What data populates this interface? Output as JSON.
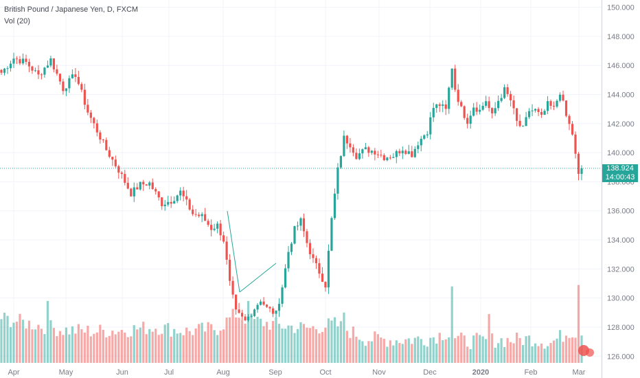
{
  "legend": {
    "title": "British Pound / Japanese Yen, D, FXCM",
    "indicator": "Vol (20)"
  },
  "current": {
    "price": "138.924",
    "timer": "14:00:43",
    "up_color": "#26a69a",
    "down_color": "#ef5350"
  },
  "chart_data": {
    "type": "candlestick",
    "x_labels": [
      "Apr",
      "May",
      "Jun",
      "Jul",
      "Aug",
      "Sep",
      "Oct",
      "Nov",
      "Dec",
      "2020",
      "Feb",
      "Mar"
    ],
    "y_ticks": [
      "126.000",
      "128.000",
      "130.000",
      "132.000",
      "134.000",
      "136.000",
      "138.000",
      "140.000",
      "142.000",
      "144.000",
      "146.000",
      "148.000",
      "150.000"
    ],
    "ylim": [
      124.5,
      150.5
    ],
    "last_price": 138.924,
    "close_path": [
      [
        0,
        145.5
      ],
      [
        4,
        146.5
      ],
      [
        8,
        146.2
      ],
      [
        12,
        145.3
      ],
      [
        16,
        146.4
      ],
      [
        20,
        144.4
      ],
      [
        24,
        145.4
      ],
      [
        28,
        142.8
      ],
      [
        34,
        140.2
      ],
      [
        38,
        138.8
      ],
      [
        42,
        137.2
      ],
      [
        45,
        137.8
      ],
      [
        48,
        137.9
      ],
      [
        52,
        136.5
      ],
      [
        55,
        136.7
      ],
      [
        58,
        137.3
      ],
      [
        62,
        135.8
      ],
      [
        65,
        135.6
      ],
      [
        68,
        134.8
      ],
      [
        70,
        135.0
      ],
      [
        72,
        134.0
      ],
      [
        74,
        131.0
      ],
      [
        76,
        129.0
      ],
      [
        79,
        128.4
      ],
      [
        82,
        129.3
      ],
      [
        84,
        129.9
      ],
      [
        86,
        129.3
      ],
      [
        89,
        128.9
      ],
      [
        91,
        130.8
      ],
      [
        93,
        133.2
      ],
      [
        95,
        134.7
      ],
      [
        97,
        135.3
      ],
      [
        99,
        133.8
      ],
      [
        101,
        132.6
      ],
      [
        103,
        131.8
      ],
      [
        105,
        130.9
      ],
      [
        107,
        135.4
      ],
      [
        109,
        138.8
      ],
      [
        111,
        141.0
      ],
      [
        113,
        140.6
      ],
      [
        115,
        139.8
      ],
      [
        118,
        140.2
      ],
      [
        121,
        140.1
      ],
      [
        124,
        139.7
      ],
      [
        127,
        139.8
      ],
      [
        130,
        140.3
      ],
      [
        133,
        139.9
      ],
      [
        135,
        140.7
      ],
      [
        138,
        141.5
      ],
      [
        140,
        143.1
      ],
      [
        142,
        143.3
      ],
      [
        144,
        142.9
      ],
      [
        146,
        145.9
      ],
      [
        147,
        144.4
      ],
      [
        149,
        143.0
      ],
      [
        151,
        142.2
      ],
      [
        153,
        143.2
      ],
      [
        155,
        142.9
      ],
      [
        157,
        143.6
      ],
      [
        159,
        142.5
      ],
      [
        161,
        143.6
      ],
      [
        163,
        144.3
      ],
      [
        165,
        143.6
      ],
      [
        167,
        142.1
      ],
      [
        169,
        141.6
      ],
      [
        171,
        142.9
      ],
      [
        173,
        142.9
      ],
      [
        175,
        142.4
      ],
      [
        177,
        143.3
      ],
      [
        179,
        143.0
      ],
      [
        181,
        144.2
      ],
      [
        183,
        142.5
      ],
      [
        185,
        141.3
      ],
      [
        186,
        139.8
      ],
      [
        187,
        138.4
      ],
      [
        188,
        138.924
      ]
    ],
    "volume_path": [
      [
        0,
        128.5
      ],
      [
        10,
        128.1
      ],
      [
        20,
        127.7
      ],
      [
        30,
        127.6
      ],
      [
        40,
        127.7
      ],
      [
        50,
        127.9
      ],
      [
        60,
        127.6
      ],
      [
        70,
        127.8
      ],
      [
        76,
        128.8
      ],
      [
        80,
        128.4
      ],
      [
        90,
        128.0
      ],
      [
        100,
        127.8
      ],
      [
        108,
        128.1
      ],
      [
        118,
        127.1
      ],
      [
        128,
        127.0
      ],
      [
        138,
        127.1
      ],
      [
        144,
        127.5
      ],
      [
        150,
        126.9
      ],
      [
        158,
        127.0
      ],
      [
        166,
        127.0
      ],
      [
        172,
        127.1
      ],
      [
        178,
        126.8
      ],
      [
        184,
        127.6
      ],
      [
        188,
        127.5
      ]
    ],
    "volume_spikes": [
      [
        15,
        129.8
      ],
      [
        80,
        129.8
      ],
      [
        111,
        129.0
      ],
      [
        146,
        130.8
      ],
      [
        158,
        128.9
      ],
      [
        187,
        130.9
      ]
    ]
  }
}
